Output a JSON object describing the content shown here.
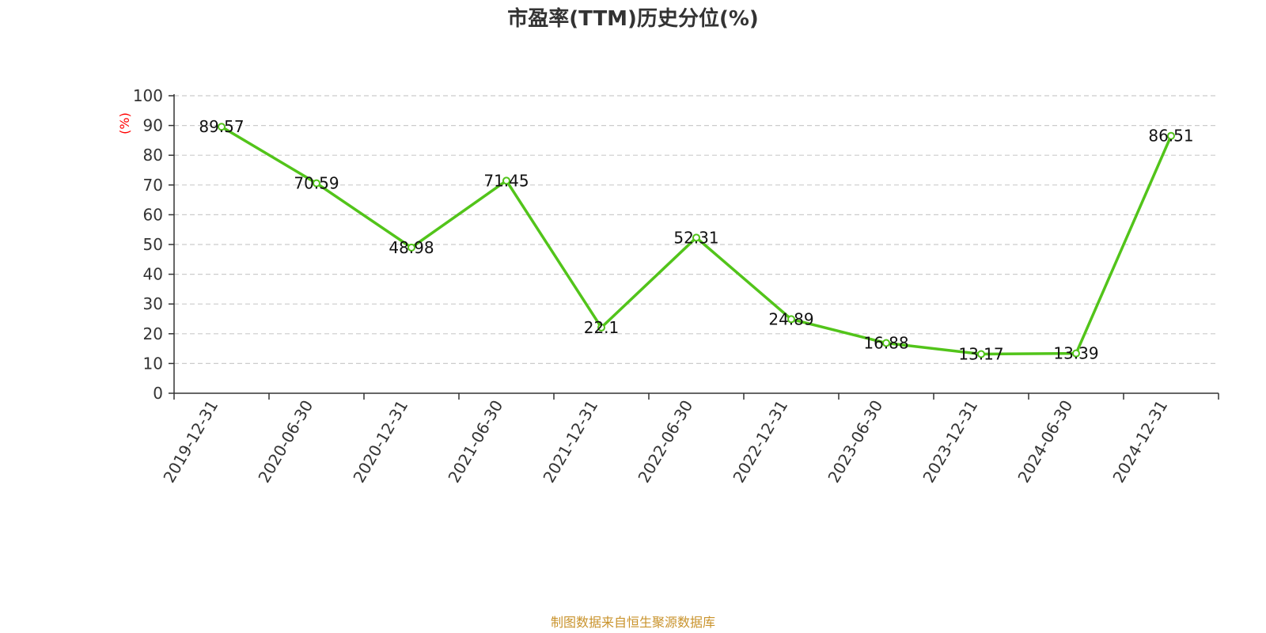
{
  "chart_data": {
    "type": "line",
    "title": "市盈率(TTM)历史分位(%)",
    "ylabel": "(%)",
    "xlabel": "",
    "categories": [
      "2019-12-31",
      "2020-06-30",
      "2020-12-31",
      "2021-06-30",
      "2021-12-31",
      "2022-06-30",
      "2022-12-31",
      "2023-06-30",
      "2023-12-31",
      "2024-06-30",
      "2024-12-31"
    ],
    "series": [
      {
        "values": [
          89.57,
          70.59,
          48.98,
          71.45,
          22.1,
          52.31,
          24.89,
          16.88,
          13.17,
          13.39,
          86.51
        ],
        "labels": [
          "89.57",
          "70.59",
          "48.98",
          "71.45",
          "22.1",
          "52.31",
          "24.89",
          "16.88",
          "13.17",
          "13.39",
          "86.51"
        ],
        "color": "#52c41a"
      }
    ],
    "ylim": [
      0,
      100
    ],
    "yticks": [
      0,
      10,
      20,
      30,
      40,
      50,
      60,
      70,
      80,
      90,
      100
    ],
    "grid": true,
    "legend": "none"
  },
  "source_note": "制图数据来自恒生聚源数据库",
  "colors": {
    "axis": "#333333",
    "grid": "#cccccc",
    "ylabel": "#ff0000",
    "source": "#c9932c"
  }
}
